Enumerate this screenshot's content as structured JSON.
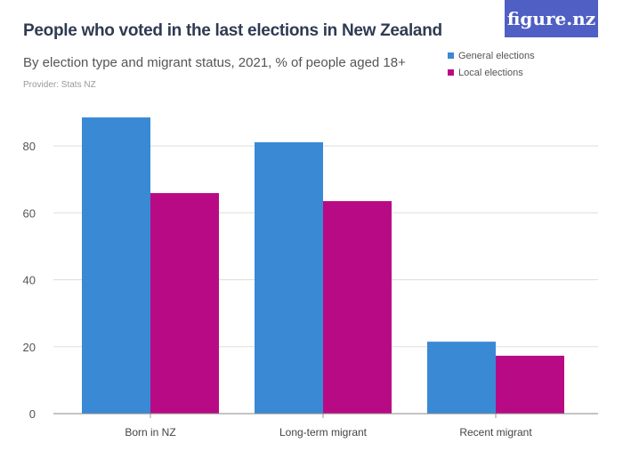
{
  "title": "People who voted in the last elections in New Zealand",
  "subtitle": "By election type and migrant status, 2021, % of people aged 18+",
  "provider": "Provider: Stats NZ",
  "logo": "figure.nz",
  "chart_data": {
    "type": "bar",
    "categories": [
      "Born in NZ",
      "Long-term migrant",
      "Recent migrant"
    ],
    "series": [
      {
        "name": "General elections",
        "color": "#3a89d5",
        "values": [
          88.5,
          81.1,
          21.5
        ]
      },
      {
        "name": "Local elections",
        "color": "#b90a85",
        "values": [
          65.9,
          63.5,
          17.3
        ]
      }
    ],
    "ylim": [
      0,
      100
    ],
    "yticks": [
      0,
      20,
      40,
      60,
      80
    ],
    "grid": true,
    "legend": "top-right"
  }
}
